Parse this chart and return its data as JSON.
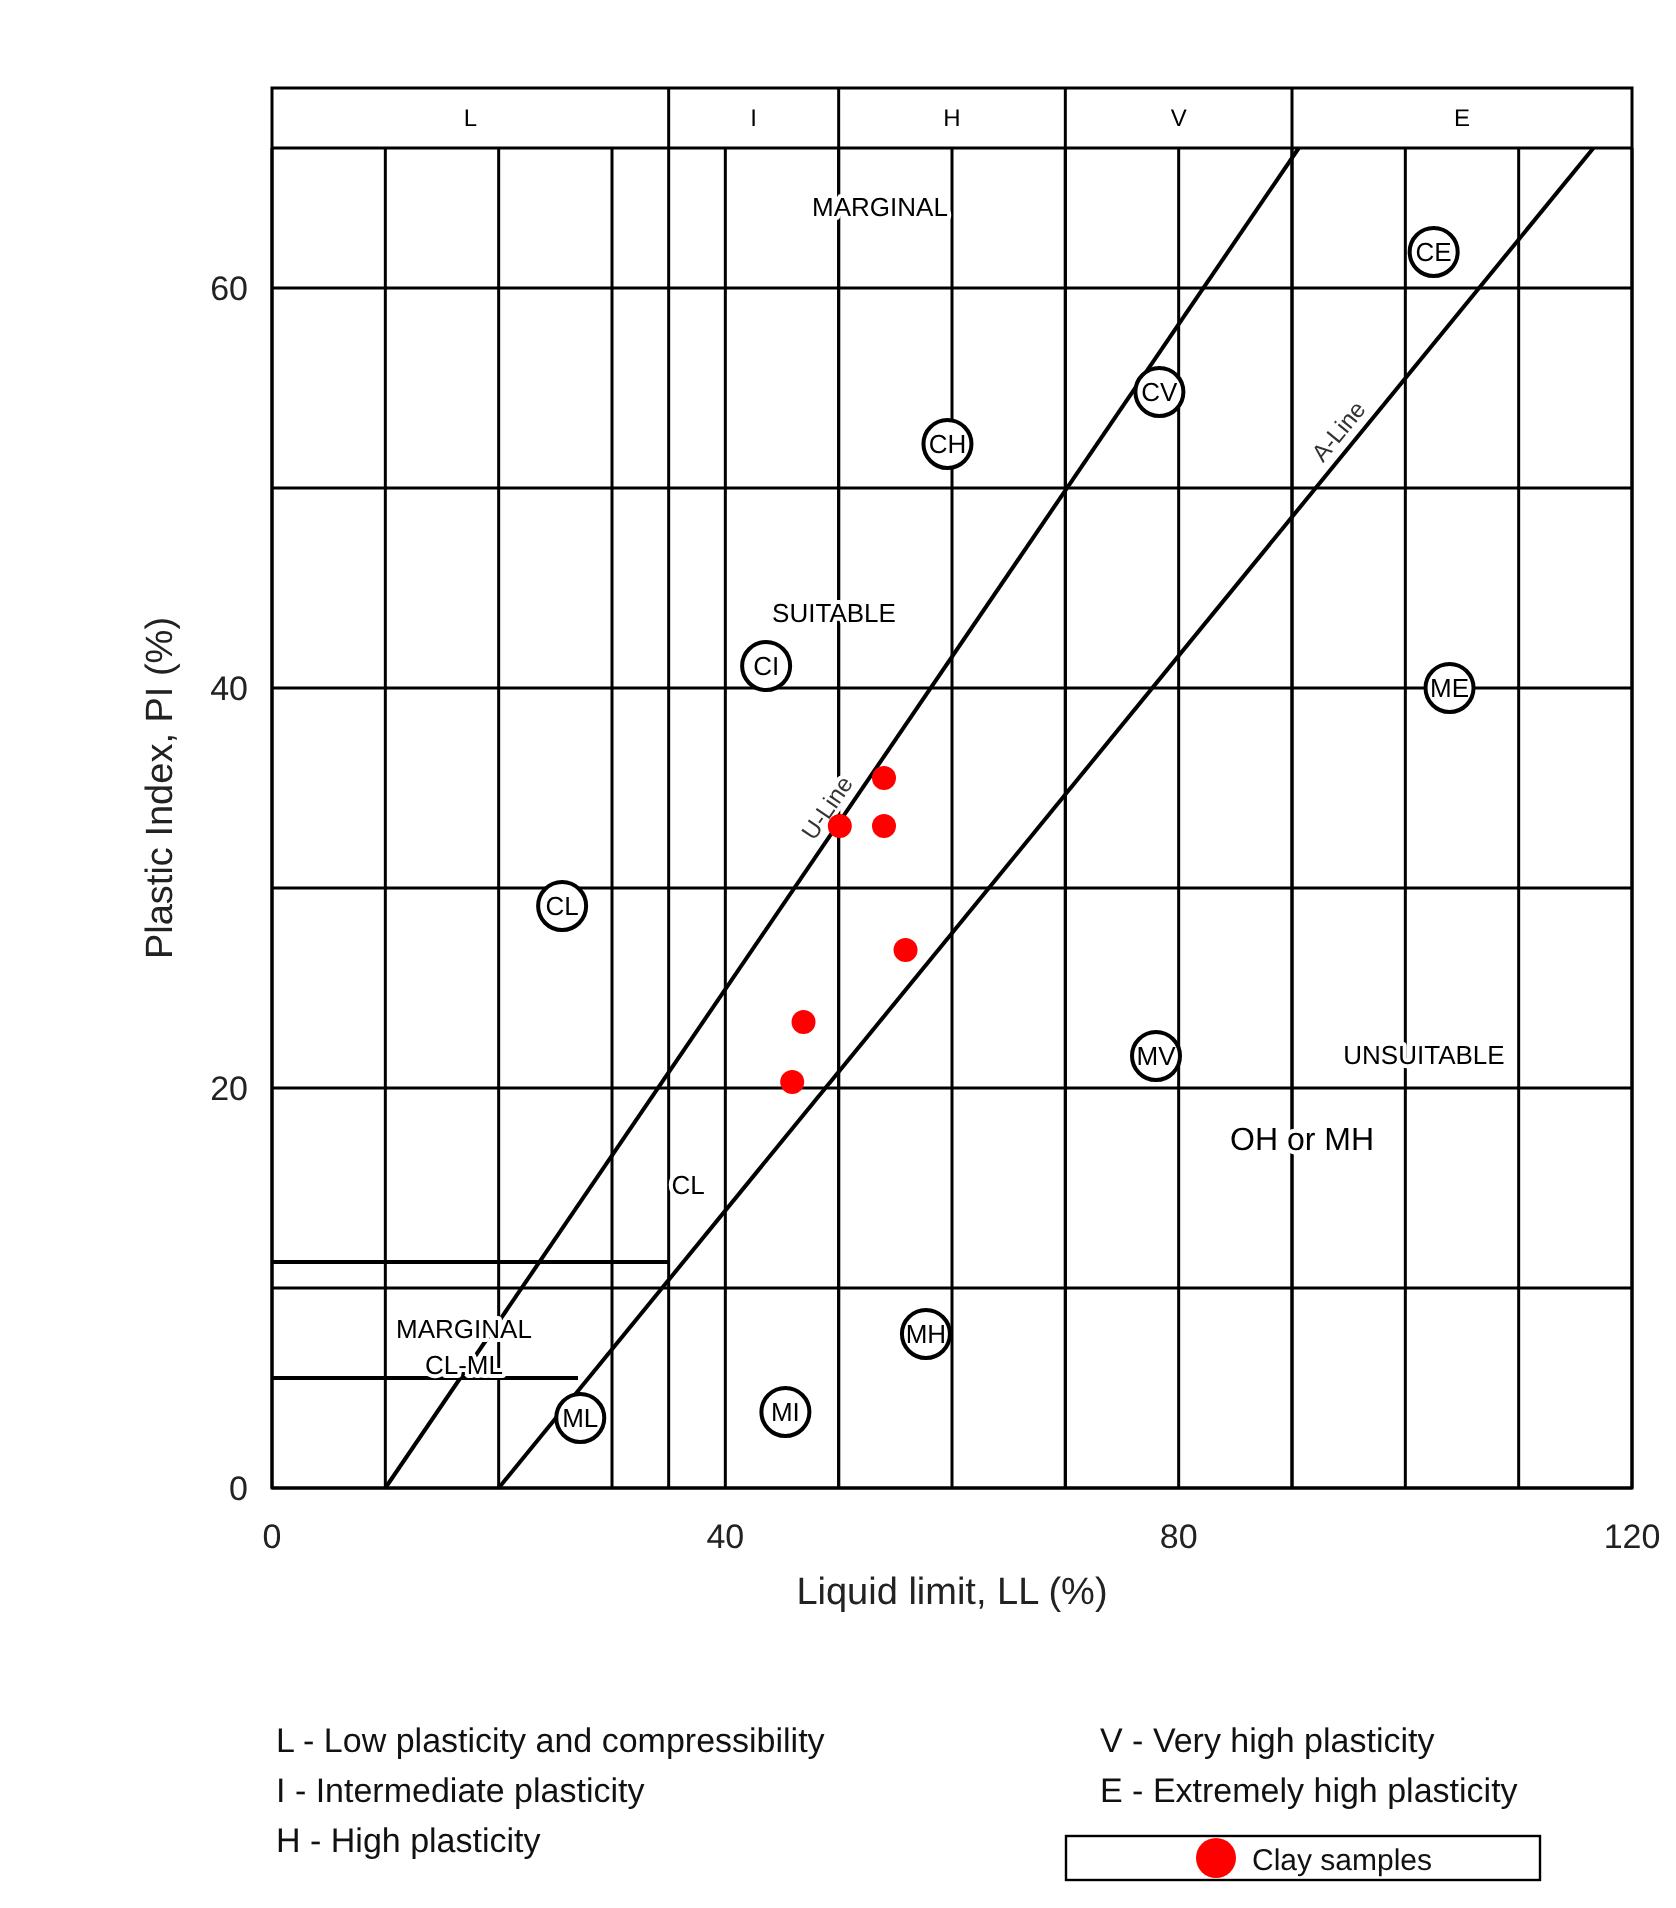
{
  "chart_data": {
    "type": "scatter",
    "xlabel": "Liquid limit, LL (%)",
    "ylabel": "Plastic Index, PI (%)",
    "xlim": [
      0,
      120
    ],
    "ylim": [
      0,
      70
    ],
    "xticks": [
      0,
      {
        "value": 10,
        "label": null
      },
      {
        "value": 20,
        "label": null
      },
      {
        "value": 30,
        "label": null
      },
      40,
      {
        "value": 50,
        "label": null
      },
      {
        "value": 60,
        "label": null
      },
      {
        "value": 70,
        "label": null
      },
      80,
      {
        "value": 90,
        "label": null
      },
      {
        "value": 100,
        "label": null
      },
      {
        "value": 110,
        "label": null
      },
      120
    ],
    "yticks": [
      0,
      {
        "value": 10,
        "label": null
      },
      20,
      {
        "value": 30,
        "label": null
      },
      40,
      {
        "value": 50,
        "label": null
      },
      60
    ],
    "grid": true,
    "legend": "bottom right",
    "series": [
      {
        "type": "line",
        "name": "U-Line",
        "color": "#000000",
        "x": [
          10,
          90.6
        ],
        "values": [
          0,
          67
        ]
      },
      {
        "type": "line",
        "name": "A-Line",
        "color": "#000000",
        "x": [
          20,
          116.6
        ],
        "values": [
          0,
          67
        ]
      },
      {
        "type": "line",
        "color": "#000000",
        "x": [
          0,
          35
        ],
        "values": [
          11.3,
          11.3
        ]
      },
      {
        "type": "line",
        "color": "#000000",
        "x": [
          0,
          27
        ],
        "values": [
          5.5,
          5.5
        ]
      },
      {
        "color": "#000000",
        "marker": "circle",
        "x": [
          102.5,
          59.6,
          78.3,
          43.6,
          103.9,
          25.6,
          78,
          57.7,
          27.2,
          45.3
        ],
        "values": [
          61.8,
          52.2,
          54.8,
          41.1,
          40,
          29.1,
          21.6,
          7.7,
          3.5,
          3.8
        ],
        "value_labels": [
          "CE",
          "CH",
          "CV",
          "CI",
          "ME",
          "CL",
          "MV",
          "MH",
          "ML",
          "MI"
        ]
      },
      {
        "name": "Clay samples",
        "color": "#ff0000",
        "marker": "circle",
        "x": [
          50.1,
          54,
          54,
          55.9,
          46.9,
          45.9
        ],
        "values": [
          33.1,
          35.5,
          33.1,
          26.9,
          23.3,
          20.3
        ]
      }
    ],
    "ref_lines": [
      {
        "axis": "y",
        "value": 67
      },
      {
        "axis": "x",
        "value": 35
      },
      {
        "axis": "x",
        "value": 50
      },
      {
        "axis": "x",
        "value": 70
      },
      {
        "axis": "x",
        "value": 90
      }
    ],
    "annotations": [
      "L",
      "I",
      "H",
      "V",
      "E",
      "MARGINAL",
      "SUITABLE",
      "CL",
      "UNSUITABLE",
      "OH or MH",
      "MARGINAL",
      "CL-ML",
      "L - Low plasticity and compressibility",
      "I - Intermediate plasticity",
      "H - High plasticity",
      "V - Very high plasticity",
      "E - Extremely high plasticity"
    ]
  }
}
